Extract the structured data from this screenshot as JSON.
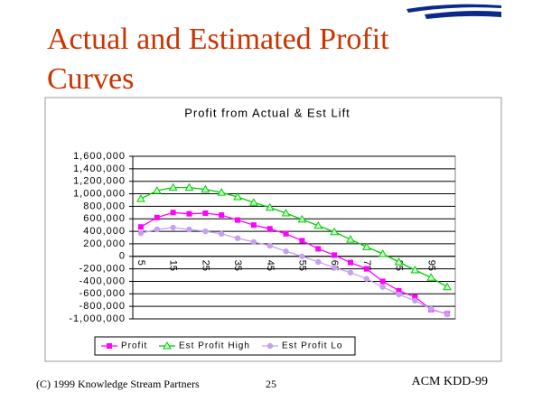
{
  "slide": {
    "title_lines": [
      "Actual and Estimated Profit",
      "Curves"
    ],
    "footer_left": "(C) 1999 Knowledge Stream Partners",
    "page_number": "25",
    "footer_right": "ACM KDD-99"
  },
  "chart_data": {
    "type": "line",
    "title": "Profit from Actual & Est Lift",
    "categories": [
      5,
      null,
      15,
      null,
      25,
      null,
      35,
      null,
      45,
      null,
      55,
      null,
      65,
      null,
      75,
      null,
      85,
      null,
      95,
      null
    ],
    "series": [
      {
        "name": "Profit",
        "color": "#ff00ff",
        "marker": "square",
        "values": [
          470000,
          620000,
          700000,
          680000,
          690000,
          660000,
          580000,
          500000,
          440000,
          360000,
          250000,
          120000,
          20000,
          -100000,
          -200000,
          -400000,
          -550000,
          -650000,
          -850000,
          -920000
        ]
      },
      {
        "name": "Est Profit High",
        "color": "#00cc00",
        "marker": "triangle",
        "values": [
          920000,
          1050000,
          1100000,
          1100000,
          1070000,
          1020000,
          950000,
          860000,
          780000,
          690000,
          590000,
          490000,
          390000,
          270000,
          150000,
          40000,
          -90000,
          -220000,
          -340000,
          -490000
        ]
      },
      {
        "name": "Est Profit Lo",
        "color": "#c8a0f0",
        "marker": "circle",
        "values": [
          370000,
          430000,
          460000,
          430000,
          400000,
          360000,
          290000,
          230000,
          170000,
          80000,
          0,
          -90000,
          -180000,
          -260000,
          -360000,
          -490000,
          -610000,
          -710000,
          -840000,
          -930000
        ]
      }
    ],
    "ylim": [
      -1000000,
      1600000
    ],
    "yticks": [
      {
        "value": 1600000,
        "label": "1,600,000"
      },
      {
        "value": 1400000,
        "label": "1,400,000"
      },
      {
        "value": 1200000,
        "label": "1,200,000"
      },
      {
        "value": 1000000,
        "label": "1,000,000"
      },
      {
        "value": 800000,
        "label": "800,000"
      },
      {
        "value": 600000,
        "label": "600,000"
      },
      {
        "value": 400000,
        "label": "400,000"
      },
      {
        "value": 200000,
        "label": "200,000"
      },
      0,
      {
        "value": -200000,
        "label": "-200,000"
      },
      {
        "value": -400000,
        "label": "-400,000"
      },
      {
        "value": -600000,
        "label": "-600,000"
      },
      {
        "value": -800000,
        "label": "-800,000"
      },
      {
        "value": -1000000,
        "label": "-1,000,000"
      }
    ],
    "grid": true,
    "legend": "bottom"
  }
}
